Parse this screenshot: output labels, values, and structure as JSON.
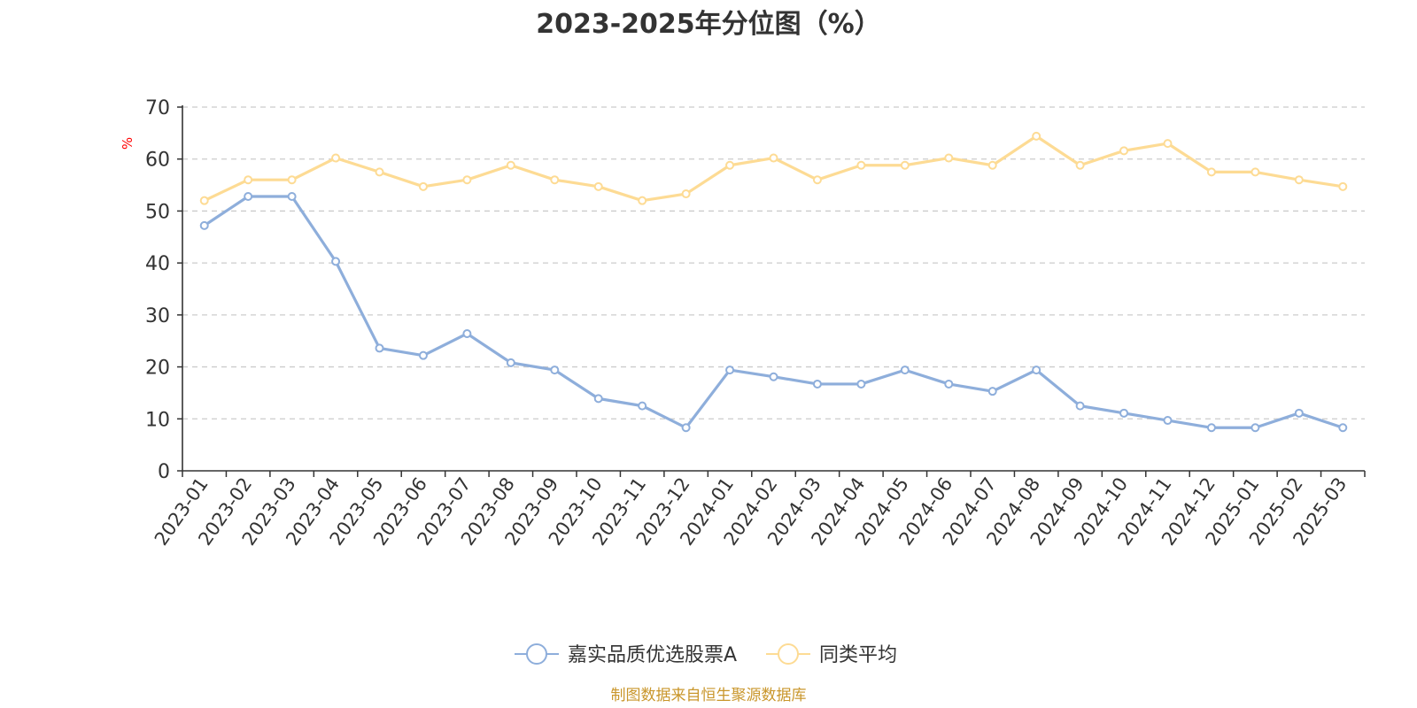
{
  "chart_data": {
    "type": "line",
    "title": "2023-2025年分位图（%）",
    "ylabel": "%",
    "ylim": [
      0,
      70
    ],
    "yticks": [
      0,
      10,
      20,
      30,
      40,
      50,
      60,
      70
    ],
    "grid": true,
    "legend_position": "bottom",
    "categories": [
      "2023-01",
      "2023-02",
      "2023-03",
      "2023-04",
      "2023-05",
      "2023-06",
      "2023-07",
      "2023-08",
      "2023-09",
      "2023-10",
      "2023-11",
      "2023-12",
      "2024-01",
      "2024-02",
      "2024-03",
      "2024-04",
      "2024-05",
      "2024-06",
      "2024-07",
      "2024-08",
      "2024-09",
      "2024-10",
      "2024-11",
      "2024-12",
      "2025-01",
      "2025-02",
      "2025-03"
    ],
    "series": [
      {
        "name": "嘉实品质优选股票A",
        "color": "#8eaedb",
        "values": [
          47.2,
          52.8,
          52.8,
          40.3,
          23.6,
          22.2,
          26.4,
          20.8,
          19.4,
          13.9,
          12.5,
          8.3,
          19.4,
          18.1,
          16.7,
          16.7,
          19.4,
          16.7,
          15.3,
          19.4,
          12.5,
          11.1,
          9.7,
          8.3,
          8.3,
          11.1,
          8.3
        ]
      },
      {
        "name": "同类平均",
        "color": "#fddb94",
        "values": [
          52.0,
          56.0,
          56.0,
          60.2,
          57.5,
          54.7,
          56.0,
          58.8,
          56.0,
          54.7,
          52.0,
          53.3,
          58.8,
          60.2,
          56.0,
          58.8,
          58.8,
          60.2,
          58.8,
          64.4,
          58.8,
          61.6,
          63.0,
          57.5,
          57.5,
          56.0,
          54.7
        ]
      }
    ]
  },
  "source_note": "制图数据来自恒生聚源数据库",
  "colors": {
    "axis": "#333333",
    "grid": "#cccccc",
    "ylabel": "#ff0000",
    "source": "#c9962b"
  }
}
